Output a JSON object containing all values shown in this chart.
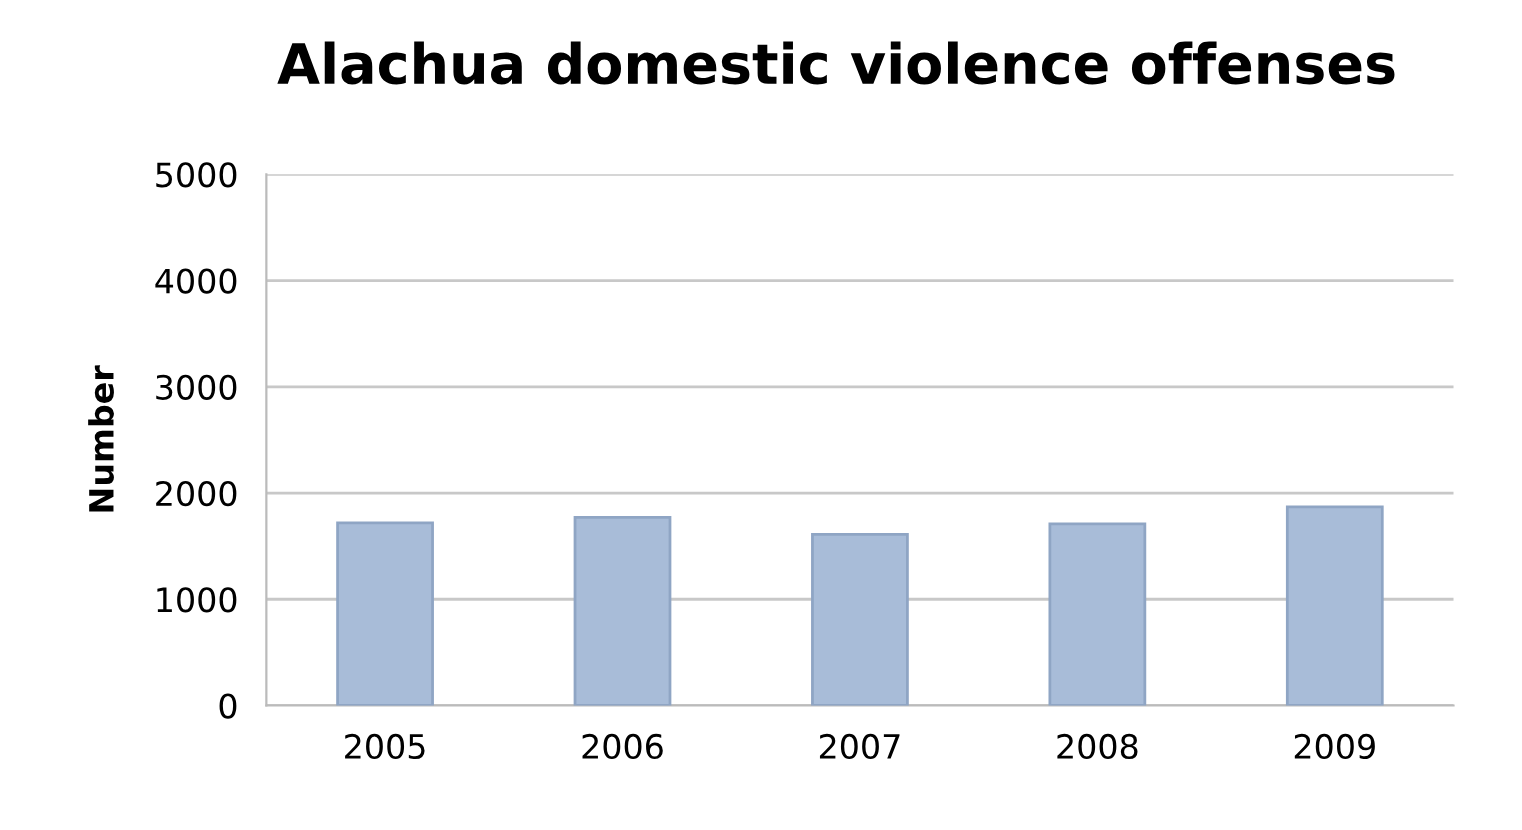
{
  "chart_data": {
    "type": "bar",
    "title": "Alachua domestic violence offenses",
    "ylabel": "Number",
    "categories": [
      "2005",
      "2006",
      "2007",
      "2008",
      "2009"
    ],
    "values": [
      1720,
      1770,
      1610,
      1710,
      1870
    ],
    "color": "#a8bcd8",
    "ylim": [
      0,
      5000
    ],
    "yticks": [
      0,
      1000,
      2000,
      3000,
      4000,
      5000
    ],
    "grid": "y"
  }
}
